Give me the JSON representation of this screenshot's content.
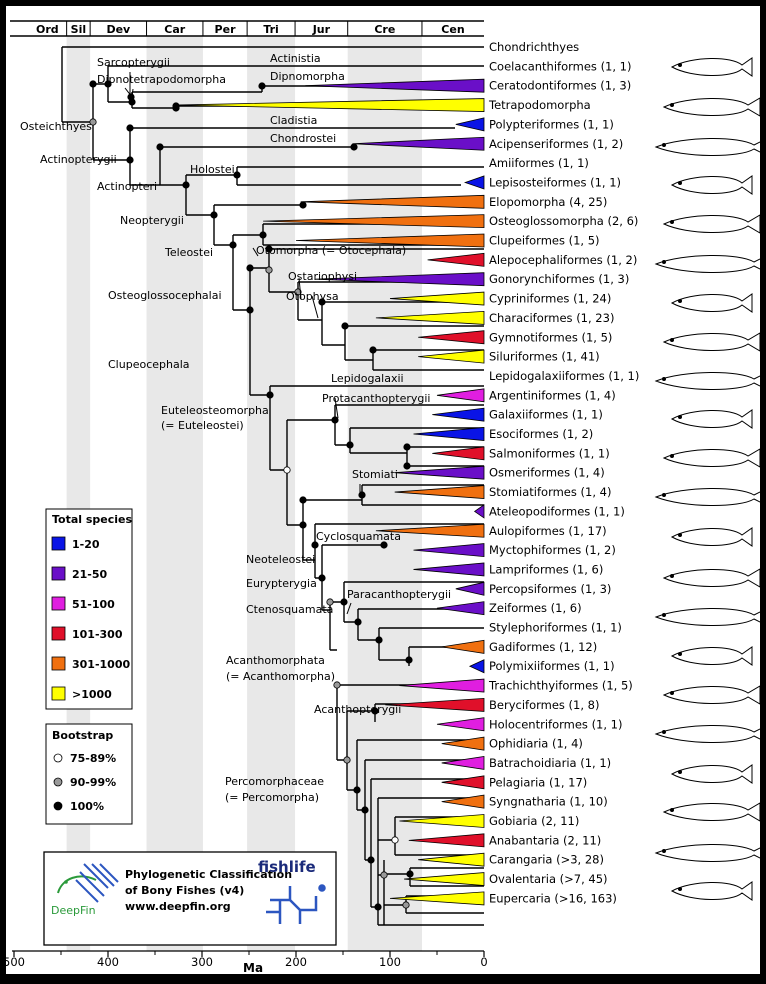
{
  "axis": {
    "label": "Ma",
    "ticks": [
      "500",
      "400",
      "300",
      "200",
      "100",
      "0"
    ]
  },
  "periods": [
    {
      "label": "Ord",
      "start": 485,
      "end": 444
    },
    {
      "label": "Sil",
      "start": 444,
      "end": 419
    },
    {
      "label": "Dev",
      "start": 419,
      "end": 359
    },
    {
      "label": "Car",
      "start": 359,
      "end": 299
    },
    {
      "label": "Per",
      "start": 299,
      "end": 252
    },
    {
      "label": "Tri",
      "start": 252,
      "end": 201
    },
    {
      "label": "Jur",
      "start": 201,
      "end": 145
    },
    {
      "label": "Cre",
      "start": 145,
      "end": 66
    },
    {
      "label": "Cen",
      "start": 66,
      "end": 0
    }
  ],
  "taxa": [
    "Chondrichthyes",
    "Coelacanthiformes (1, 1)",
    "Ceratodontiformes (1, 3)",
    "Tetrapodomorpha",
    "Polypteriformes (1, 1)",
    "Acipenseriformes (1, 2)",
    "Amiiformes (1, 1)",
    "Lepisosteiformes (1, 1)",
    "Elopomorpha (4, 25)",
    "Osteoglossomorpha (2, 6)",
    "Clupeiformes (1, 5)",
    "Alepocephaliformes (1, 2)",
    "Gonorynchiformes (1, 3)",
    "Cypriniformes (1, 24)",
    "Characiformes (1, 23)",
    "Gymnotiformes (1, 5)",
    "Siluriformes (1, 41)",
    "Lepidogalaxiiformes (1, 1)",
    "Argentiniformes (1, 4)",
    "Galaxiiformes (1, 1)",
    "Esociformes (1, 2)",
    "Salmoniformes (1, 1)",
    "Osmeriformes (1, 4)",
    "Stomiatiformes (1, 4)",
    "Ateleopodiformes (1, 1)",
    "Aulopiformes (1, 17)",
    "Myctophiformes (1, 2)",
    "Lampriformes (1, 6)",
    "Percopsiformes (1, 3)",
    "Zeiformes (1, 6)",
    "Stylephoriformes (1, 1)",
    "Gadiformes (1, 12)",
    "Polymixiiformes (1, 1)",
    "Trachichthyiformes (1, 5)",
    "Beryciformes (1, 8)",
    "Holocentriformes (1, 1)",
    "Ophidiaria (1, 4)",
    "Batrachoidiaria (1, 1)",
    "Pelagiaria (1, 17)",
    "Syngnatharia (1, 10)",
    "Gobiaria (2, 11)",
    "Anabantaria (2, 11)",
    "Carangaria (>3, 28)",
    "Ovalentaria (>7, 45)",
    "Eupercaria (>16, 163)"
  ],
  "clade_labels": [
    "Sarcopterygii",
    "Actinistia",
    "Dipnotetrapodomorpha",
    "Dipnomorpha",
    "Osteichthyes",
    "Cladistia",
    "Actinopterygii",
    "Chondrostei",
    "Actinopteri",
    "Holostei",
    "Neopterygii",
    "Teleostei",
    "Otomorpha (= Otocephala)",
    "Ostariophysi",
    "Otophysa",
    "Osteoglossocephalai",
    "Clupeocephala",
    "Lepidogalaxii",
    "Protacanthopterygii",
    "Euteleosteomorpha",
    "(= Euteleostei)",
    "Stomiati",
    "Cyclosquamata",
    "Neoteleostei",
    "Eurypterygia",
    "Paracanthopterygii",
    "Ctenosquamata",
    "Acanthomorphata",
    "(= Acanthomorpha)",
    "Acanthopterygii",
    "Percomorphaceae",
    "(= Percomorpha)"
  ],
  "legend_species": {
    "title": "Total species",
    "items": [
      {
        "label": "1-20",
        "color": "#0a14e6"
      },
      {
        "label": "21-50",
        "color": "#6a0fc8"
      },
      {
        "label": "51-100",
        "color": "#e01ee0"
      },
      {
        "label": "101-300",
        "color": "#e0102a"
      },
      {
        "label": "301-1000",
        "color": "#f07010"
      },
      {
        "label": ">1000",
        "color": "#ffff00"
      }
    ]
  },
  "legend_bootstrap": {
    "title": "Bootstrap",
    "items": [
      {
        "label": "75-89%",
        "color": "#ffffff"
      },
      {
        "label": "90-99%",
        "color": "#999999"
      },
      {
        "label": "100%",
        "color": "#000000"
      }
    ]
  },
  "logo_box": {
    "title_line1": "Phylogenetic Classification",
    "title_line2": "of Bony Fishes (v4)",
    "url": "www.deepfin.org",
    "deepfin": "DeepFin",
    "fishlife": "fishlife"
  }
}
